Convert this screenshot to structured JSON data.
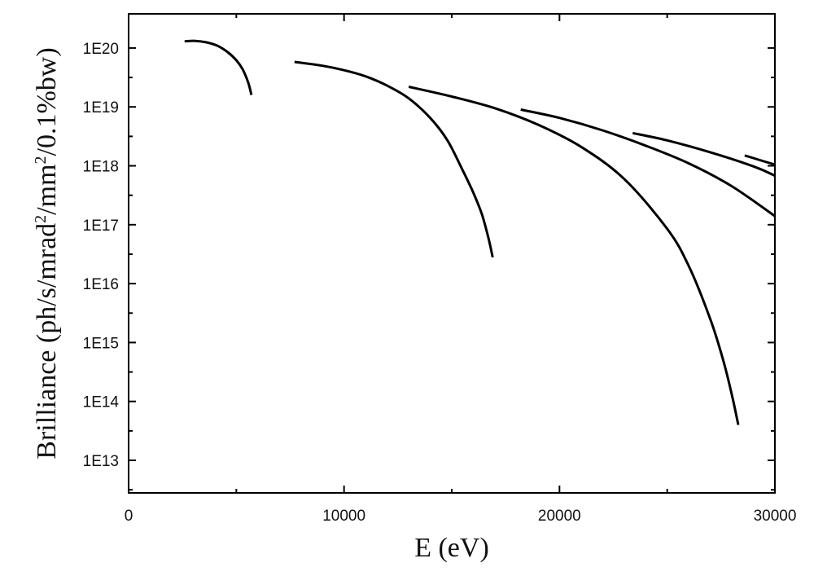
{
  "chart_data": {
    "type": "line",
    "xlabel": "E (eV)",
    "ylabel_parts": [
      "Brilliance (ph/s/mrad",
      "2",
      "/mm",
      "2",
      "/0.1%bw)"
    ],
    "x_scale": "linear",
    "y_scale": "log",
    "xlim": [
      0,
      30000
    ],
    "ylim": [
      2800000000000.0,
      3.8e+20
    ],
    "x_ticks": [
      0,
      10000,
      20000,
      30000
    ],
    "x_tick_labels": [
      "0",
      "10000",
      "20000",
      "30000"
    ],
    "y_ticks": [
      10000000000000.0,
      100000000000000.0,
      1000000000000000.0,
      1e+16,
      1e+17,
      1e+18,
      1e+19,
      1e+20
    ],
    "y_tick_labels": [
      "1E13",
      "1E14",
      "1E15",
      "1E16",
      "1E17",
      "1E18",
      "1E19",
      "1E20"
    ],
    "grid": false,
    "line_color": "#000000",
    "series": [
      {
        "x": [
          2600,
          3100,
          3600,
          4100,
          4600,
          5000,
          5300,
          5550,
          5700
        ],
        "y": [
          1.3e+20,
          1.32e+20,
          1.25e+20,
          1.1e+20,
          8.5e+19,
          6.2e+19,
          4.3e+19,
          2.6e+19,
          1.6e+19
        ]
      },
      {
        "x": [
          7700,
          9000,
          10000,
          11000,
          12000,
          13000,
          14000,
          14800,
          15500,
          16000,
          16400,
          16700,
          16900
        ],
        "y": [
          5.8e+19,
          5e+19,
          4.2e+19,
          3.3e+19,
          2.3e+19,
          1.4e+19,
          6.5e+18,
          2.7e+18,
          8.5e+17,
          3.5e+17,
          1.5e+17,
          6e+16,
          2.8e+16
        ]
      },
      {
        "x": [
          13000,
          15000,
          17000,
          19000,
          21000,
          23000,
          25000,
          26000,
          27000,
          27600,
          28000,
          28300
        ],
        "y": [
          2.2e+19,
          1.5e+19,
          9.5e+18,
          5e+18,
          2.1e+18,
          6e+17,
          8.5e+16,
          2e+16,
          2500000000000000.0,
          500000000000000.0,
          130000000000000.0,
          40000000000000.0
        ]
      },
      {
        "x": [
          18200,
          20000,
          22000,
          24000,
          26000,
          28000,
          30000
        ],
        "y": [
          9e+18,
          6.5e+18,
          4e+18,
          2.2e+18,
          1.1e+18,
          4.5e+17,
          1.4e+17
        ]
      },
      {
        "x": [
          23400,
          25000,
          27000,
          29000,
          30000
        ],
        "y": [
          3.6e+18,
          2.7e+18,
          1.7e+18,
          9.8e+17,
          6.8e+17
        ]
      },
      {
        "x": [
          28600,
          29300,
          30000
        ],
        "y": [
          1.5e+18,
          1.25e+18,
          1.05e+18
        ]
      }
    ]
  }
}
